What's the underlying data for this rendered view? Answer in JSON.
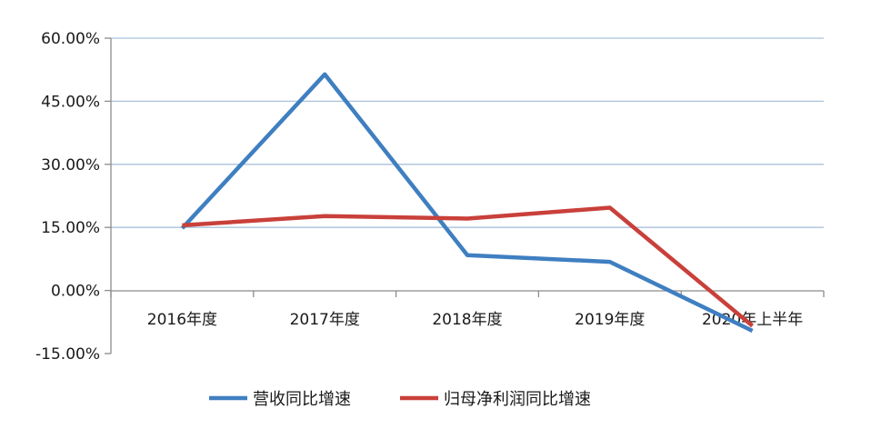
{
  "chart_data": {
    "type": "line",
    "title": "",
    "xlabel": "",
    "ylabel": "",
    "categories": [
      "2016年度",
      "2017年度",
      "2018年度",
      "2019年度",
      "2020年上半年"
    ],
    "series": [
      {
        "name": "营收同比增速",
        "color": "#3f7fc1",
        "values": [
          14.8,
          51.4,
          8.4,
          6.8,
          -9.6
        ]
      },
      {
        "name": "归母净利润同比增速",
        "color": "#c9403a",
        "values": [
          15.5,
          17.7,
          17.1,
          19.7,
          -8.4
        ]
      }
    ],
    "ylim": [
      -15,
      60
    ],
    "yticks": [
      60,
      45,
      30,
      15,
      0,
      -15
    ],
    "ytick_labels": [
      "60.00%",
      "45.00%",
      "30.00%",
      "15.00%",
      "0.00%",
      "-15.00%"
    ],
    "grid": true,
    "legend_position": "bottom"
  }
}
